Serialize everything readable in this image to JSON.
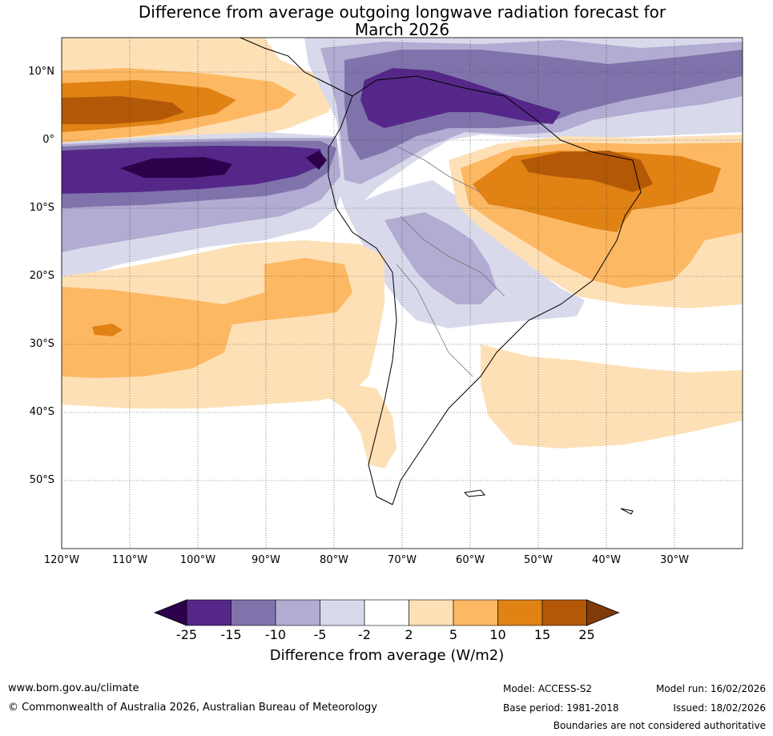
{
  "title_line1": "Difference from average outgoing longwave radiation forecast for",
  "title_line2": "March 2026",
  "lat_labels": [
    "10°N",
    "0°",
    "10°S",
    "20°S",
    "30°S",
    "40°S",
    "50°S"
  ],
  "lon_labels": [
    "120°W",
    "110°W",
    "100°W",
    "90°W",
    "80°W",
    "70°W",
    "60°W",
    "50°W",
    "40°W",
    "30°W"
  ],
  "colorbar": {
    "ticks": [
      "-25",
      "-15",
      "-10",
      "-5",
      "-2",
      "2",
      "5",
      "10",
      "15",
      "25"
    ],
    "colors": [
      "#2d004b",
      "#542788",
      "#8073ac",
      "#b2abd2",
      "#d8daeb",
      "#ffffff",
      "#fee0b6",
      "#fdb863",
      "#e08214",
      "#b35806",
      "#7f3b08"
    ],
    "label": "Difference from average (W/m2)"
  },
  "footer": {
    "website": "www.bom.gov.au/climate",
    "copyright": "© Commonwealth of Australia 2026, Australian Bureau of Meteorology",
    "model": "Model: ACCESS-S2",
    "base_period": "Base period: 1981-2018",
    "model_run": "Model run: 16/02/2026",
    "issued": "Issued: 18/02/2026",
    "disclaimer": "Boundaries are not considered authoritative"
  }
}
